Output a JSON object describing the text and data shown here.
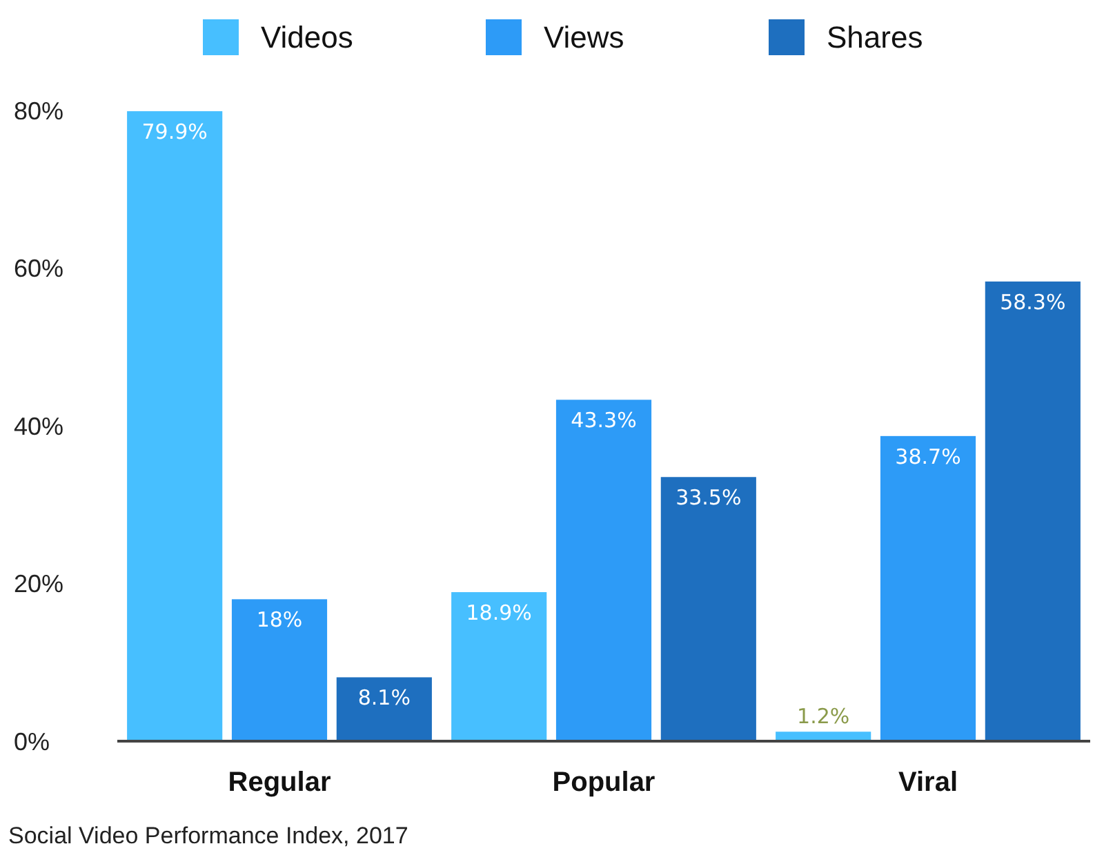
{
  "chart_data": {
    "type": "bar",
    "categories": [
      "Regular",
      "Popular",
      "Viral"
    ],
    "series": [
      {
        "name": "Videos",
        "color": "#47bfff",
        "values": [
          79.9,
          18.9,
          1.2
        ],
        "value_labels": [
          "79.9%",
          "18.9%",
          "1.2%"
        ]
      },
      {
        "name": "Views",
        "color": "#2d9bf7",
        "values": [
          18,
          43.3,
          38.7
        ],
        "value_labels": [
          "18%",
          "43.3%",
          "38.7%"
        ]
      },
      {
        "name": "Shares",
        "color": "#1e6fbf",
        "values": [
          8.1,
          33.5,
          58.3
        ],
        "value_labels": [
          "8.1%",
          "33.5%",
          "58.3%"
        ]
      }
    ],
    "ylim": [
      0,
      80
    ],
    "yticks": [
      {
        "value": 0,
        "label": "0%"
      },
      {
        "value": 20,
        "label": "20%"
      },
      {
        "value": 40,
        "label": "40%"
      },
      {
        "value": 60,
        "label": "60%"
      },
      {
        "value": 80,
        "label": "80%"
      }
    ],
    "grid": false,
    "legend": "top",
    "annotations": [
      "Social Video Performance Index, 2017"
    ]
  }
}
